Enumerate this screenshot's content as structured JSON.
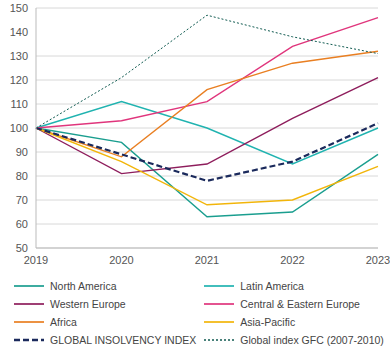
{
  "chart_data": {
    "type": "line",
    "categories": [
      "2019",
      "2020",
      "2021",
      "2022",
      "2023"
    ],
    "ylim": [
      50,
      150
    ],
    "yticks": [
      50,
      60,
      70,
      80,
      90,
      100,
      110,
      120,
      130,
      140,
      150
    ],
    "grid": true,
    "legend": "bottom",
    "series": [
      {
        "name": "North America",
        "color": "#1a9e8f",
        "line_style": "solid",
        "values": [
          100,
          94,
          63,
          65,
          89
        ]
      },
      {
        "name": "Latin America",
        "color": "#20b3b0",
        "line_style": "solid",
        "values": [
          100,
          111,
          100,
          85,
          100
        ]
      },
      {
        "name": "Western Europe",
        "color": "#8e1d5c",
        "line_style": "solid",
        "values": [
          100,
          81,
          85,
          104,
          121
        ]
      },
      {
        "name": "Central & Eastern Europe",
        "color": "#e0357c",
        "line_style": "solid",
        "values": [
          100,
          103,
          111,
          134,
          146
        ]
      },
      {
        "name": "Africa",
        "color": "#e97f22",
        "line_style": "solid",
        "values": [
          100,
          88,
          116,
          127,
          132
        ]
      },
      {
        "name": "Asia-Pacific",
        "color": "#f2b50a",
        "line_style": "solid",
        "values": [
          100,
          86,
          68,
          70,
          84
        ]
      },
      {
        "name": "GLOBAL INSOLVENCY INDEX",
        "color": "#1b2a5c",
        "line_style": "dashed",
        "values": [
          100,
          89,
          78,
          86,
          102
        ]
      },
      {
        "name": "Global index GFC (2007-2010)",
        "color": "#0f5a50",
        "line_style": "dotted",
        "values": [
          100,
          121,
          147,
          138,
          131
        ]
      }
    ]
  }
}
